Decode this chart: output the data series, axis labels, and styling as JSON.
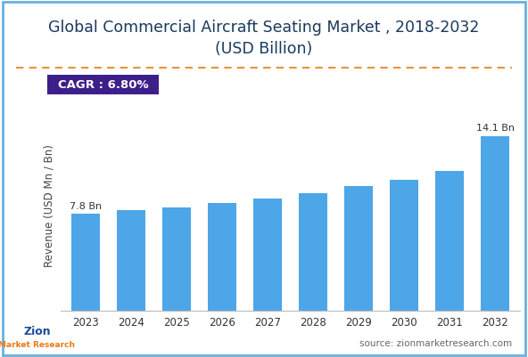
{
  "title_line1": "Global Commercial Aircraft Seating Market , 2018-2032",
  "title_line2": "(USD Billion)",
  "title_color": "#1a3a5c",
  "title_fontsize": 12.5,
  "cagr_text": "CAGR : 6.80%",
  "cagr_bg_color": "#3d1f8a",
  "cagr_text_color": "#ffffff",
  "ylabel": "Revenue (USD Mn / Bn)",
  "ylabel_color": "#444444",
  "source_text": "source: zionmarketresearch.com",
  "categories": [
    "2023",
    "2024",
    "2025",
    "2026",
    "2027",
    "2028",
    "2029",
    "2030",
    "2031",
    "2032"
  ],
  "values": [
    7.8,
    8.1,
    8.35,
    8.7,
    9.05,
    9.5,
    10.05,
    10.55,
    11.3,
    14.1
  ],
  "bar_color": "#4da6e8",
  "first_label": "7.8 Bn",
  "last_label": "14.1 Bn",
  "ylim": [
    0,
    17
  ],
  "background_color": "#ffffff",
  "border_color": "#6ab0e0",
  "dashed_line_color": "#e8923a",
  "grid": false
}
